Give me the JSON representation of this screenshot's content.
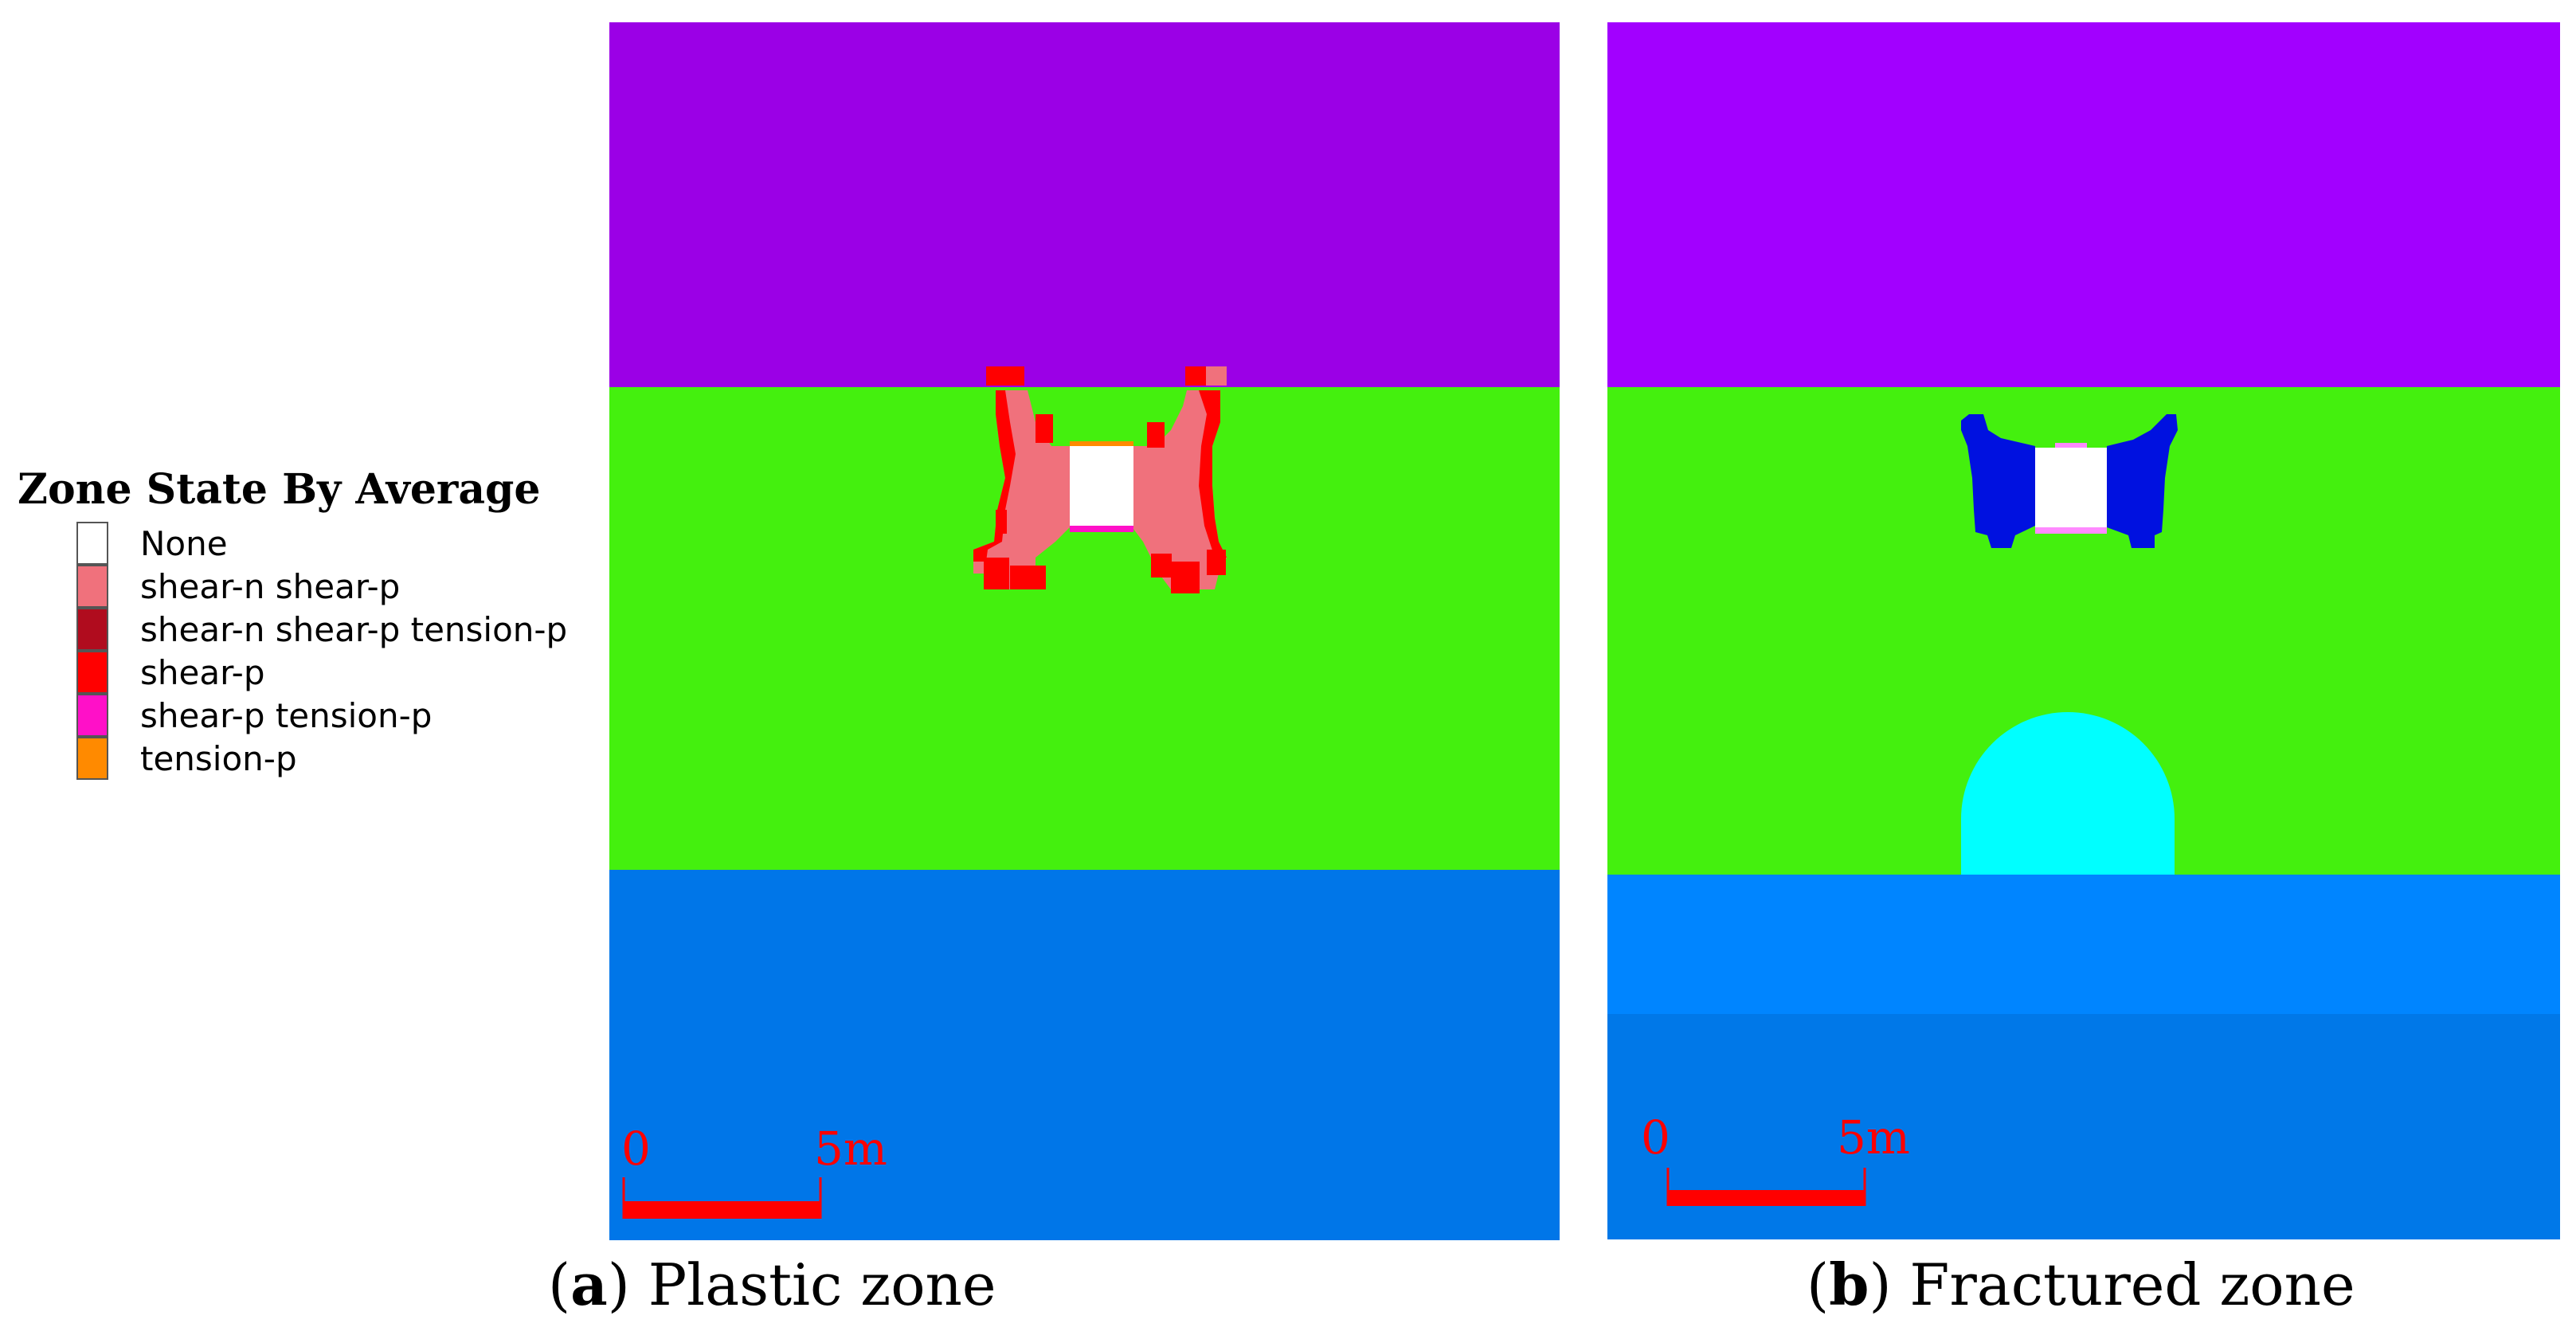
{
  "legend": {
    "title": "Zone State By Average",
    "items": [
      {
        "label": "None",
        "color": "#ffffff"
      },
      {
        "label": "shear-n shear-p",
        "color": "#f0717c"
      },
      {
        "label": "shear-n shear-p tension-p",
        "color": "#b00c1e"
      },
      {
        "label": "shear-p",
        "color": "#ff0000"
      },
      {
        "label": "shear-p tension-p",
        "color": "#ff10c8"
      },
      {
        "label": "tension-p",
        "color": "#ff8a00"
      }
    ]
  },
  "panels": {
    "a": {
      "letter": "a",
      "caption_text": "Plastic zone",
      "scale": {
        "start": "0",
        "end": "5m"
      },
      "colors": {
        "top": "#9b00e6",
        "middle": "#44f00e",
        "bottom": "#0076e8"
      }
    },
    "b": {
      "letter": "b",
      "caption_text": "Fractured zone",
      "scale": {
        "start": "0",
        "end": "5m"
      },
      "colors": {
        "top": "#a200ff",
        "middle": "#44f00e",
        "bottom_upper": "#0085ff",
        "bottom_lower": "#0078e8",
        "fracture": "#0011e0",
        "arch": "#00ffff"
      }
    }
  }
}
